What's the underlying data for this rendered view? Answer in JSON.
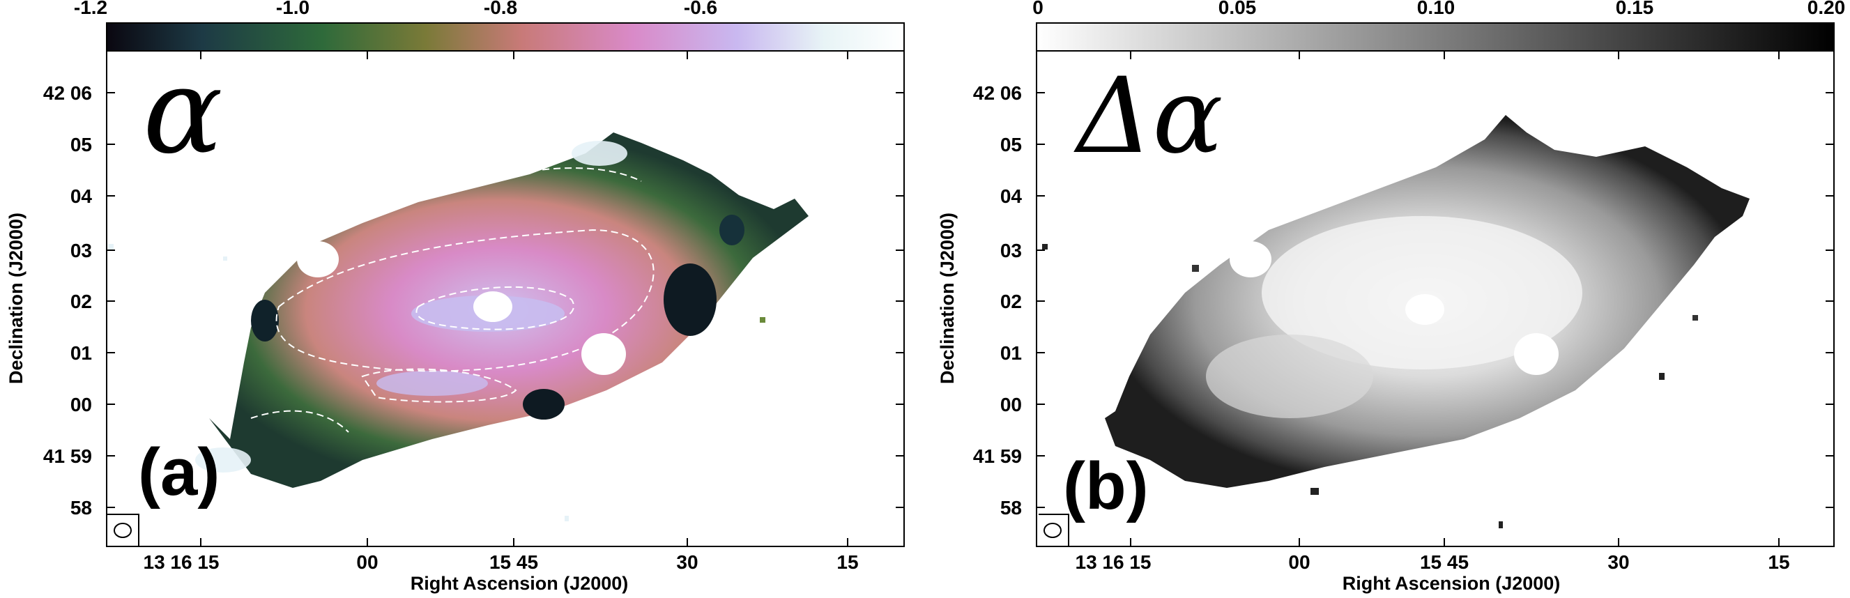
{
  "panels": [
    {
      "id": "a",
      "label": "(a)",
      "symbol": "α",
      "colorbar": {
        "ticks": [
          "-1.2",
          "-1.0",
          "-0.8",
          "-0.6"
        ],
        "stops": [
          "#0a0710",
          "#1d3a45",
          "#2e6a3a",
          "#7a7a38",
          "#c87a78",
          "#d98ac8",
          "#c9b8f0",
          "#e8f4f6",
          "#ffffff"
        ]
      },
      "ylabel": "Declination (J2000)",
      "xlabel": "Right Ascension (J2000)",
      "yticks": [
        "42 06",
        "05",
        "04",
        "03",
        "02",
        "01",
        "00",
        "41 59",
        "58"
      ],
      "xticks": [
        "13 16 15",
        "00",
        "15 45",
        "30",
        "15"
      ]
    },
    {
      "id": "b",
      "label": "(b)",
      "symbol": "Δα",
      "colorbar": {
        "ticks": [
          "0",
          "0.05",
          "0.10",
          "0.15",
          "0.20"
        ],
        "stops": [
          "#ffffff",
          "#000000"
        ]
      },
      "ylabel": "Declination (J2000)",
      "xlabel": "Right Ascension (J2000)",
      "yticks": [
        "42 06",
        "05",
        "04",
        "03",
        "02",
        "01",
        "00",
        "41 59",
        "58"
      ],
      "xticks": [
        "13 16 15",
        "00",
        "15 45",
        "30",
        "15"
      ]
    }
  ]
}
